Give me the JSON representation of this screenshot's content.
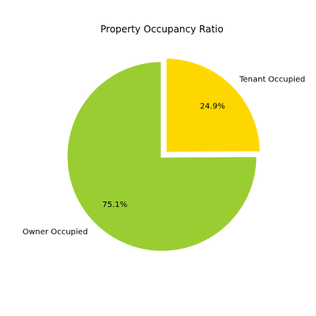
{
  "chart_data": {
    "type": "pie",
    "title": "Property Occupancy Ratio",
    "slices": [
      {
        "label": "Tenant Occupied",
        "value": 24.9,
        "pct_label": "24.9%",
        "color": "#FFD700",
        "exploded": true
      },
      {
        "label": "Owner Occupied",
        "value": 75.1,
        "pct_label": "75.1%",
        "color": "#9ACD32",
        "exploded": false
      }
    ],
    "start_angle_deg": 90,
    "direction": "clockwise",
    "legend": "none"
  }
}
